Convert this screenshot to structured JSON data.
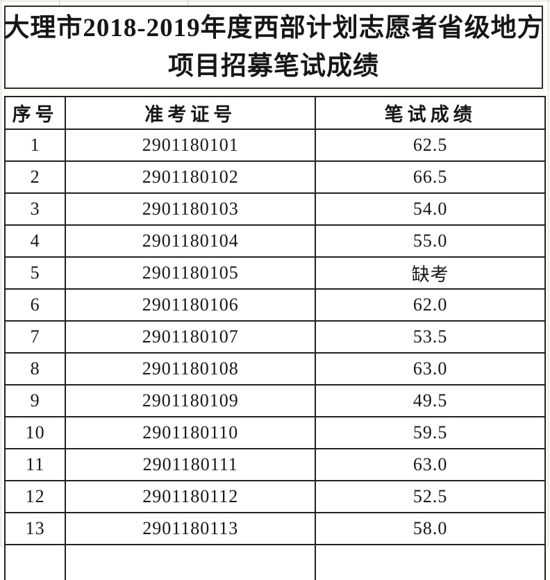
{
  "document": {
    "title_line1": "大理市2018-2019年度西部计划志愿者省级地方",
    "title_line2": "项目招募笔试成绩"
  },
  "table": {
    "headers": [
      "序号",
      "准考证号",
      "笔试成绩"
    ],
    "rows": [
      [
        "1",
        "2901180101",
        "62.5"
      ],
      [
        "2",
        "2901180102",
        "66.5"
      ],
      [
        "3",
        "2901180103",
        "54.0"
      ],
      [
        "4",
        "2901180104",
        "55.0"
      ],
      [
        "5",
        "2901180105",
        "缺考"
      ],
      [
        "6",
        "2901180106",
        "62.0"
      ],
      [
        "7",
        "2901180107",
        "53.5"
      ],
      [
        "8",
        "2901180108",
        "63.0"
      ],
      [
        "9",
        "2901180109",
        "49.5"
      ],
      [
        "10",
        "2901180110",
        "59.5"
      ],
      [
        "11",
        "2901180111",
        "63.0"
      ],
      [
        "12",
        "2901180112",
        "52.5"
      ],
      [
        "13",
        "2901180113",
        "58.0"
      ]
    ],
    "absent_label": "缺考"
  },
  "colors": {
    "table_border": "#222222",
    "title_border": "#2e2e2e",
    "text": "#161616",
    "faint_gridline": "#d9d9d6",
    "background": "#ffffff"
  }
}
